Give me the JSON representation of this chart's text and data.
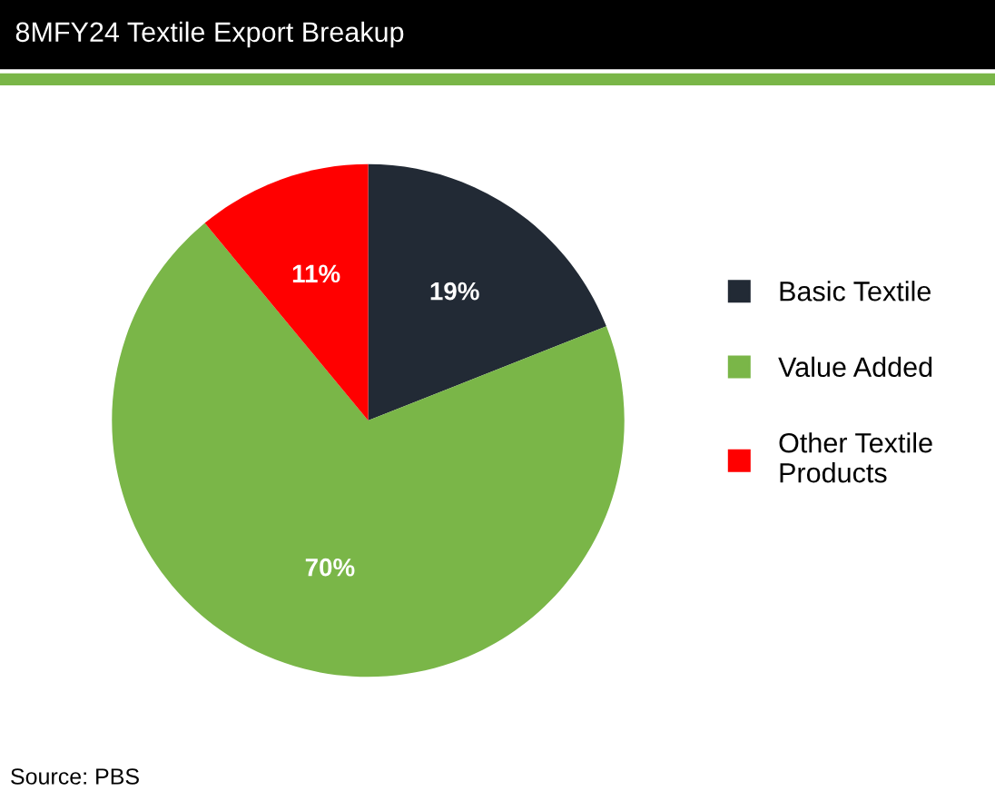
{
  "chart_data": {
    "type": "pie",
    "title": "8MFY24 Textile Export Breakup",
    "categories": [
      "Basic Textile",
      "Value Added",
      "Other Textile Products"
    ],
    "values": [
      19,
      70,
      11
    ],
    "colors": [
      "#222a35",
      "#7ab648",
      "#ff0000"
    ],
    "value_labels": [
      "19%",
      "70%",
      "11%"
    ],
    "legend": "right",
    "annotations": [
      "Source: PBS"
    ]
  }
}
